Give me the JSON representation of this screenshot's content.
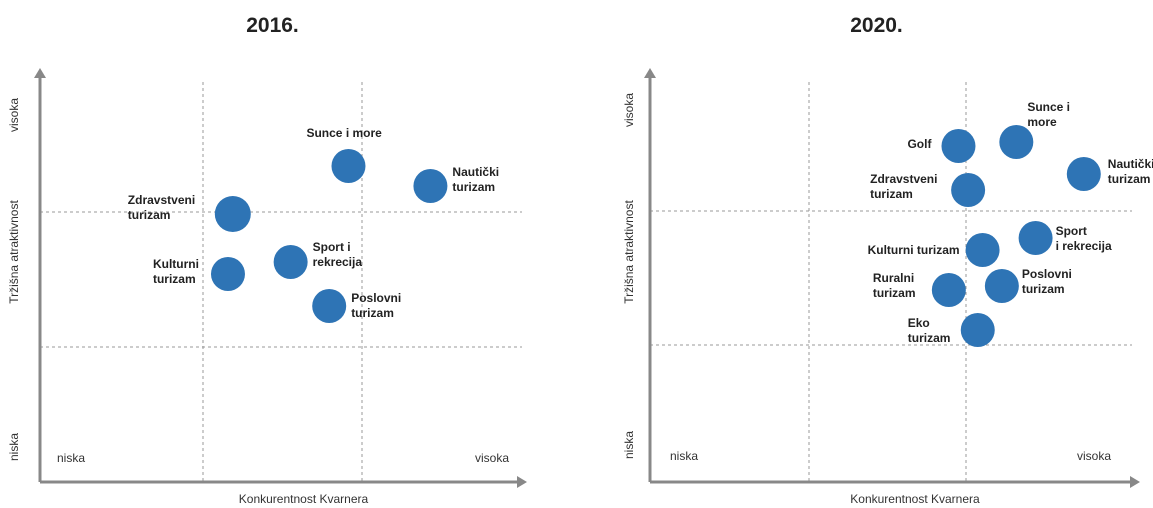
{
  "chart_data": [
    {
      "type": "scatter",
      "title": "2016.",
      "xlabel": "Konkurentnost Kvarnera",
      "ylabel": "Tržišna atraktivnost",
      "x_low_label": "niska",
      "x_high_label": "visoka",
      "y_low_label": "niska",
      "y_high_label": "visoka",
      "xlim": [
        0,
        10
      ],
      "ylim": [
        0,
        10
      ],
      "grid": "dashed",
      "points": [
        {
          "name": "Sunce i more",
          "x": 6.4,
          "y": 7.9
        },
        {
          "name": "Nautički turizam",
          "x": 8.1,
          "y": 7.4
        },
        {
          "name": "Zdravstveni turizam",
          "x": 4.0,
          "y": 6.7
        },
        {
          "name": "Sport i rekrecija",
          "x": 5.2,
          "y": 5.5
        },
        {
          "name": "Kulturni turizam",
          "x": 3.9,
          "y": 5.2
        },
        {
          "name": "Poslovni turizam",
          "x": 6.0,
          "y": 4.4
        }
      ]
    },
    {
      "type": "scatter",
      "title": "2020.",
      "xlabel": "Konkurentnost Kvarnera",
      "ylabel": "Tržišna atraktivnost",
      "x_low_label": "niska",
      "x_high_label": "visoka",
      "y_low_label": "niska",
      "y_high_label": "visoka",
      "xlim": [
        0,
        10
      ],
      "ylim": [
        0,
        10
      ],
      "grid": "dashed",
      "points": [
        {
          "name": "Golf",
          "x": 6.4,
          "y": 8.4
        },
        {
          "name": "Sunce i more",
          "x": 7.6,
          "y": 8.5
        },
        {
          "name": "Nautički turizam",
          "x": 9.0,
          "y": 7.7
        },
        {
          "name": "Zdravstveni turizam",
          "x": 6.6,
          "y": 7.3
        },
        {
          "name": "Sport i rekrecija",
          "x": 8.0,
          "y": 6.1
        },
        {
          "name": "Kulturni turizam",
          "x": 6.9,
          "y": 5.8
        },
        {
          "name": "Ruralni turizam",
          "x": 6.2,
          "y": 4.8
        },
        {
          "name": "Poslovni turizam",
          "x": 7.3,
          "y": 4.9
        },
        {
          "name": "Eko turizam",
          "x": 6.8,
          "y": 3.8
        }
      ]
    }
  ]
}
